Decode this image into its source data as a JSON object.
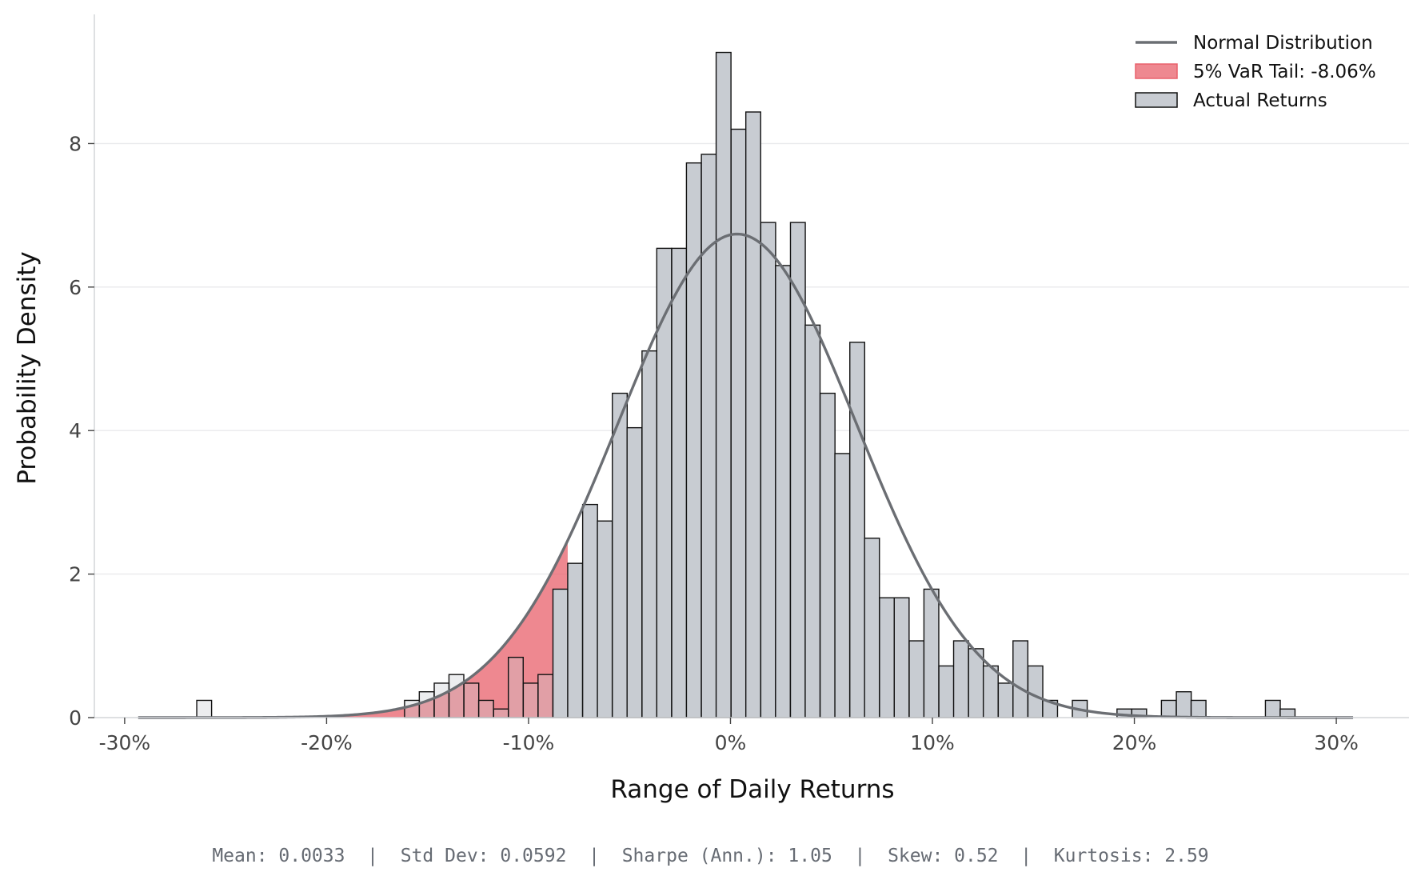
{
  "chart_data": {
    "type": "bar",
    "xlabel": "Range of Daily Returns",
    "ylabel": "Probability Density",
    "xlim": [
      -0.315,
      0.336
    ],
    "ylim": [
      0,
      9.8
    ],
    "x_ticks": [
      -0.3,
      -0.2,
      -0.1,
      0,
      0.1,
      0.2,
      0.3
    ],
    "x_tick_labels": [
      "-30%",
      "-20%",
      "-10%",
      "0%",
      "10%",
      "20%",
      "30%"
    ],
    "y_ticks": [
      0,
      2,
      4,
      6,
      8
    ],
    "y_tick_labels": [
      "0",
      "2",
      "4",
      "6",
      "8"
    ],
    "grid": "horizontal",
    "legend_position": "top-right",
    "bin_width": 0.00735,
    "series": [
      {
        "name": "Actual Returns",
        "kind": "histogram",
        "color": "#c8ccd2",
        "edge_color": "#111111",
        "bins": [
          {
            "x0": -0.2643,
            "density": 0.24
          },
          {
            "x0": -0.1614,
            "density": 0.24
          },
          {
            "x0": -0.1541,
            "density": 0.36
          },
          {
            "x0": -0.1467,
            "density": 0.48
          },
          {
            "x0": -0.1394,
            "density": 0.6
          },
          {
            "x0": -0.132,
            "density": 0.48
          },
          {
            "x0": -0.1247,
            "density": 0.24
          },
          {
            "x0": -0.1173,
            "density": 0.12
          },
          {
            "x0": -0.11,
            "density": 0.84
          },
          {
            "x0": -0.1026,
            "density": 0.48
          },
          {
            "x0": -0.0953,
            "density": 0.6
          },
          {
            "x0": -0.0879,
            "density": 1.79
          },
          {
            "x0": -0.0806,
            "density": 2.15
          },
          {
            "x0": -0.0732,
            "density": 2.97
          },
          {
            "x0": -0.0659,
            "density": 2.74
          },
          {
            "x0": -0.0585,
            "density": 4.52
          },
          {
            "x0": -0.0512,
            "density": 4.04
          },
          {
            "x0": -0.0438,
            "density": 5.11
          },
          {
            "x0": -0.0365,
            "density": 6.54
          },
          {
            "x0": -0.0291,
            "density": 6.54
          },
          {
            "x0": -0.0218,
            "density": 7.73
          },
          {
            "x0": -0.0144,
            "density": 7.85
          },
          {
            "x0": -0.0071,
            "density": 9.27
          },
          {
            "x0": 0.0003,
            "density": 8.2
          },
          {
            "x0": 0.0076,
            "density": 8.44
          },
          {
            "x0": 0.015,
            "density": 6.9
          },
          {
            "x0": 0.0223,
            "density": 6.3
          },
          {
            "x0": 0.0297,
            "density": 6.9
          },
          {
            "x0": 0.037,
            "density": 5.47
          },
          {
            "x0": 0.0444,
            "density": 4.52
          },
          {
            "x0": 0.0517,
            "density": 3.68
          },
          {
            "x0": 0.0591,
            "density": 5.23
          },
          {
            "x0": 0.0664,
            "density": 2.5
          },
          {
            "x0": 0.0738,
            "density": 1.67
          },
          {
            "x0": 0.0811,
            "density": 1.67
          },
          {
            "x0": 0.0885,
            "density": 1.07
          },
          {
            "x0": 0.0958,
            "density": 1.79
          },
          {
            "x0": 0.1032,
            "density": 0.72
          },
          {
            "x0": 0.1105,
            "density": 1.07
          },
          {
            "x0": 0.1179,
            "density": 0.96
          },
          {
            "x0": 0.1252,
            "density": 0.72
          },
          {
            "x0": 0.1326,
            "density": 0.48
          },
          {
            "x0": 0.1399,
            "density": 1.07
          },
          {
            "x0": 0.1473,
            "density": 0.72
          },
          {
            "x0": 0.1546,
            "density": 0.24
          },
          {
            "x0": 0.1693,
            "density": 0.24
          },
          {
            "x0": 0.1914,
            "density": 0.12
          },
          {
            "x0": 0.1987,
            "density": 0.12
          },
          {
            "x0": 0.2134,
            "density": 0.24
          },
          {
            "x0": 0.2208,
            "density": 0.36
          },
          {
            "x0": 0.2281,
            "density": 0.24
          },
          {
            "x0": 0.2649,
            "density": 0.24
          },
          {
            "x0": 0.2722,
            "density": 0.12
          }
        ]
      },
      {
        "name": "Normal Distribution",
        "kind": "line",
        "color": "#6b6e73",
        "mean": 0.0033,
        "std": 0.0592,
        "x_range": [
          -0.2933,
          0.3083
        ]
      },
      {
        "name": "5% VaR Tail: -8.06%",
        "kind": "area",
        "color": "#e8606b",
        "threshold": -0.0806
      }
    ],
    "stats": {
      "mean": "Mean: 0.0033",
      "std": "Std Dev: 0.0592",
      "sharpe": "Sharpe (Ann.): 1.05",
      "skew": "Skew: 0.52",
      "kurtosis": "Kurtosis: 2.59",
      "separator": "  |  "
    }
  }
}
